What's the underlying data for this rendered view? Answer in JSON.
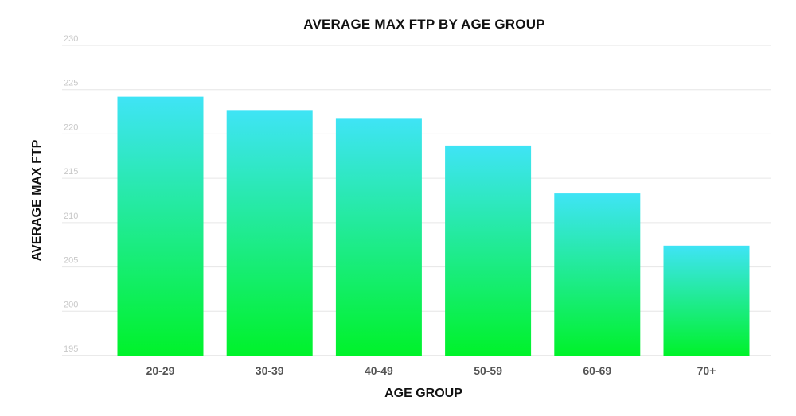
{
  "chart_data": {
    "type": "bar",
    "title": "AVERAGE MAX FTP BY AGE GROUP",
    "xlabel": "AGE GROUP",
    "ylabel": "AVERAGE MAX FTP",
    "categories": [
      "20-29",
      "30-39",
      "40-49",
      "50-59",
      "60-69",
      "70+"
    ],
    "values": [
      224.2,
      222.7,
      221.8,
      218.7,
      213.3,
      207.4
    ],
    "ylim": [
      195,
      230
    ],
    "yticks": [
      "195",
      "200",
      "205",
      "210",
      "215",
      "220",
      "225",
      "230"
    ],
    "grid": true,
    "legend": "none",
    "colors": {
      "bar_top": "#3fe4f6",
      "bar_bottom": "#00f22a",
      "grid": "#e6e6e6",
      "tick_text": "#c8c8c8",
      "category_text": "#555555",
      "title_text": "#111111"
    }
  }
}
